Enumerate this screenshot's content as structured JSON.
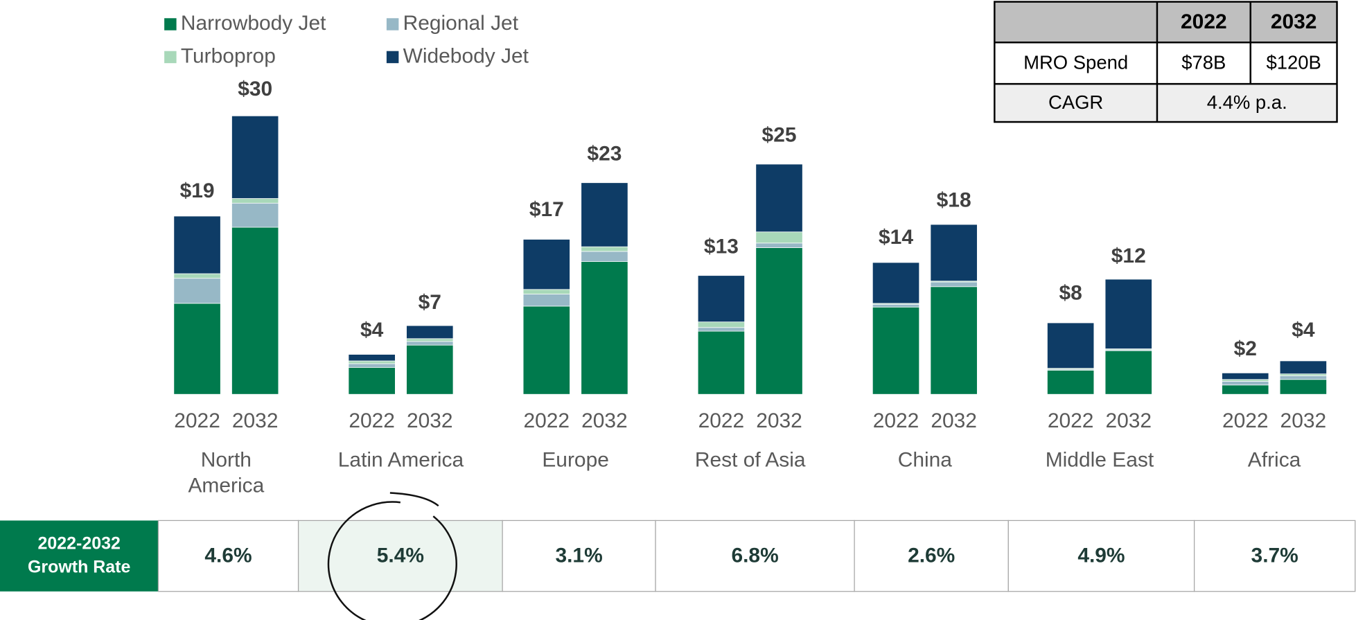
{
  "chart_data": {
    "type": "bar",
    "stacked": true,
    "categories": [
      "2022",
      "2032",
      "2022",
      "2032",
      "2022",
      "2032",
      "2022",
      "2032",
      "2022",
      "2032",
      "2022",
      "2032",
      "2022",
      "2032"
    ],
    "groups": [
      "North\nAmerica",
      "Latin America",
      "Europe",
      "Rest of Asia",
      "China",
      "Middle East",
      "Africa"
    ],
    "series": [
      {
        "name": "Narrowbody Jet",
        "color": "#007a4d",
        "values": [
          9.8,
          18.0,
          2.9,
          5.3,
          9.5,
          14.3,
          6.8,
          15.8,
          9.4,
          11.6,
          2.6,
          4.7,
          1.0,
          1.6
        ]
      },
      {
        "name": "Regional Jet",
        "color": "#97b8c6",
        "values": [
          2.7,
          2.6,
          0.4,
          0.4,
          1.3,
          1.1,
          0.4,
          0.5,
          0.3,
          0.5,
          0.1,
          0.1,
          0.4,
          0.4
        ]
      },
      {
        "name": "Turboprop",
        "color": "#a8d8b9",
        "values": [
          0.5,
          0.5,
          0.3,
          0.3,
          0.5,
          0.5,
          0.6,
          1.2,
          0.1,
          0.1,
          0.1,
          0.1,
          0.2,
          0.2
        ]
      },
      {
        "name": "Widebody Jet",
        "color": "#0e3c66",
        "values": [
          6.2,
          8.9,
          0.7,
          1.4,
          5.4,
          6.9,
          5.0,
          7.3,
          4.4,
          6.1,
          4.9,
          7.5,
          0.7,
          1.4
        ]
      }
    ],
    "totals": {
      "values": [
        19,
        30,
        4,
        7,
        17,
        23,
        13,
        25,
        14,
        18,
        8,
        12,
        2,
        4
      ],
      "value_labels": [
        "$19",
        "$30",
        "$4",
        "$7",
        "$17",
        "$23",
        "$13",
        "$25",
        "$14",
        "$18",
        "$8",
        "$12",
        "$2",
        "$4"
      ]
    },
    "legend": "top-left"
  },
  "summary_table": {
    "header": [
      "2022",
      "2032"
    ],
    "rows": [
      [
        "MRO Spend",
        "$78B",
        "$120B"
      ],
      [
        "CAGR",
        "4.4% p.a."
      ]
    ]
  },
  "growth_table": {
    "label": "2022-2032\nGrowth Rate",
    "values": [
      "4.6%",
      "5.4%",
      "3.1%",
      "6.8%",
      "2.6%",
      "4.9%",
      "3.7%"
    ],
    "highlighted": 1
  }
}
